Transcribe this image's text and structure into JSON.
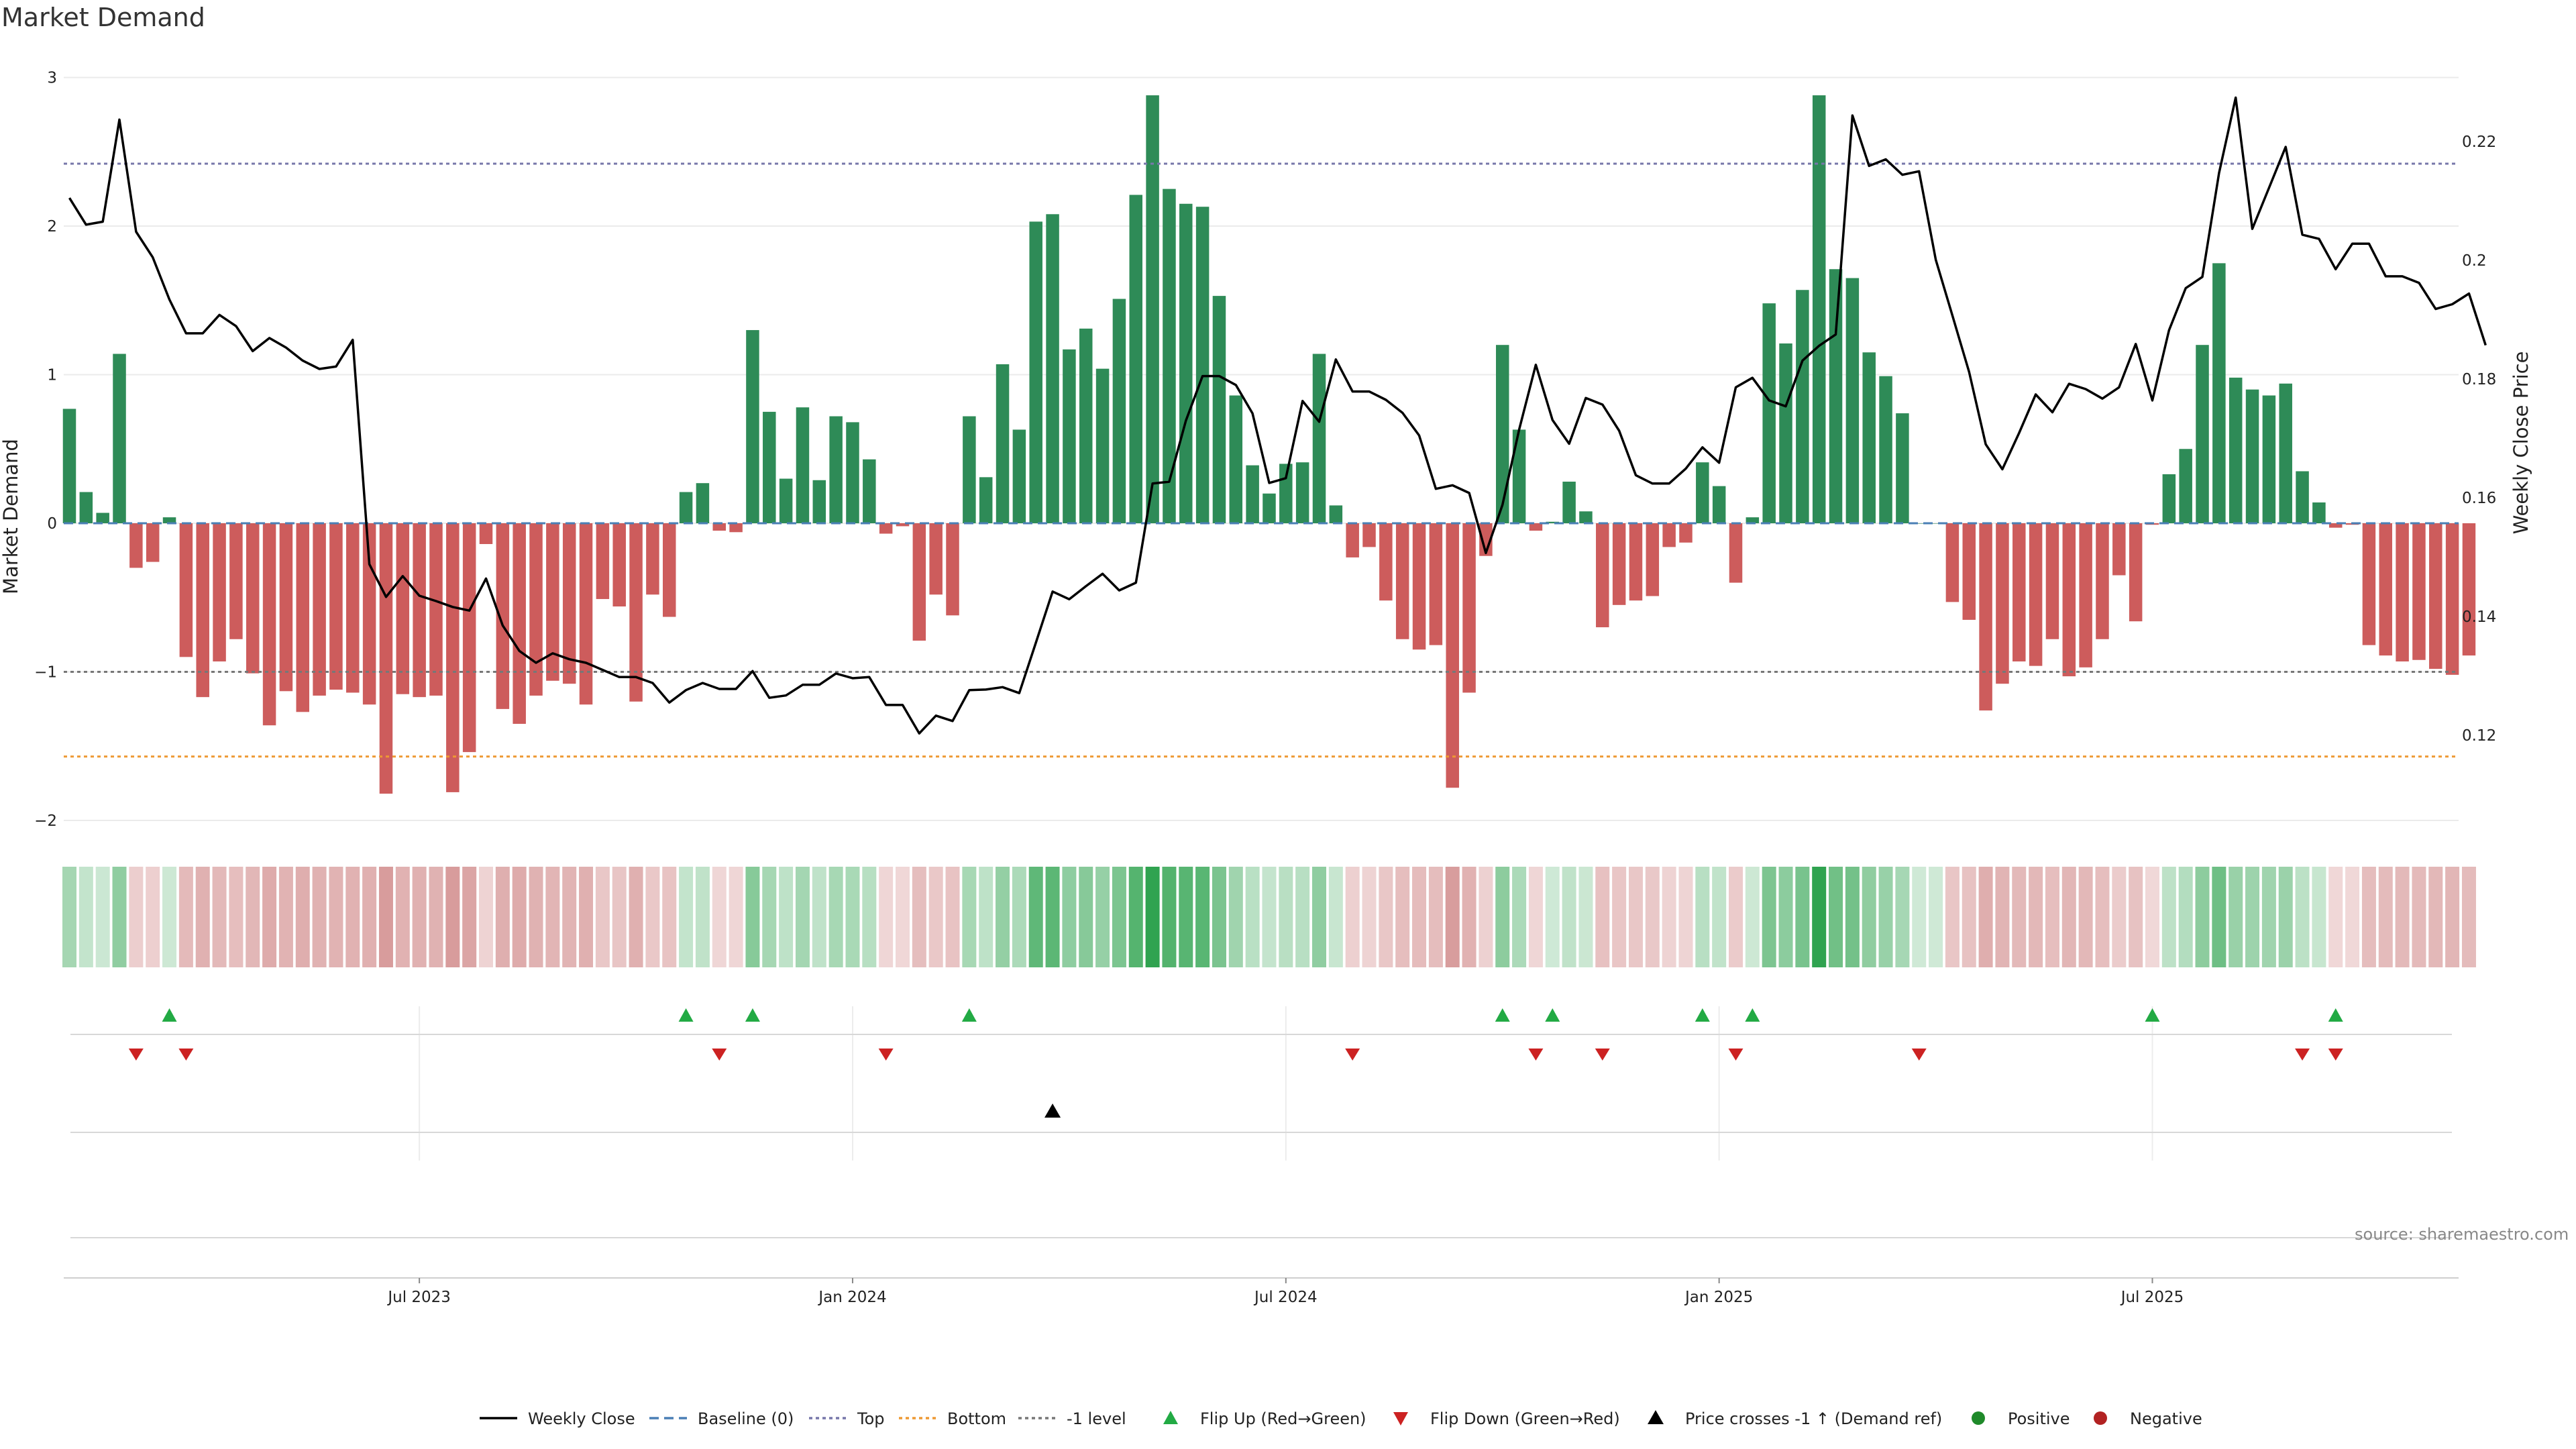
{
  "chart_data": {
    "type": "bar",
    "title": "Market Demand",
    "source_note": "source: sharemaestro.com",
    "ylabel": "Market Demand",
    "y2label": "Weekly Close Price",
    "ylim": [
      -2.25,
      3.05
    ],
    "y2lim": [
      0.1055,
      0.2308
    ],
    "yticks": [
      3,
      2,
      1,
      0,
      -1,
      -2
    ],
    "y2ticks": [
      "0.22",
      "0.2",
      "0.18",
      "0.16",
      "0.14",
      "0.12"
    ],
    "y2tick_values": [
      0.22,
      0.2,
      0.18,
      0.16,
      0.14,
      0.12
    ],
    "xticks": [
      "Jul 2023",
      "Jan 2024",
      "Jul 2024",
      "Jan 2025",
      "Jul 2025"
    ],
    "xtick_weeks": [
      21,
      47,
      73,
      99,
      125
    ],
    "reference_lines": {
      "top": 2.42,
      "minus_one": -1.0,
      "bottom": -1.57
    },
    "colors": {
      "positive": "#2e8b57",
      "negative": "#cd5c5c",
      "price": "#000000",
      "top": "#7777aa",
      "bottom": "#ee9933",
      "minus_one": "#777777",
      "flip_up": "#22aa44",
      "flip_down": "#cc2222"
    },
    "demand": [
      0.77,
      0.21,
      0.07,
      1.14,
      -0.3,
      -0.26,
      0.04,
      -0.9,
      -1.17,
      -0.93,
      -0.78,
      -1.01,
      -1.36,
      -1.13,
      -1.27,
      -1.16,
      -1.12,
      -1.14,
      -1.22,
      -1.82,
      -1.15,
      -1.17,
      -1.16,
      -1.81,
      -1.54,
      -0.14,
      -1.25,
      -1.35,
      -1.16,
      -1.06,
      -1.08,
      -1.22,
      -0.51,
      -0.56,
      -1.2,
      -0.48,
      -0.63,
      0.21,
      0.27,
      -0.05,
      -0.06,
      1.3,
      0.75,
      0.3,
      0.78,
      0.29,
      0.72,
      0.68,
      0.43,
      -0.07,
      -0.02,
      -0.79,
      -0.48,
      -0.62,
      0.72,
      0.31,
      1.07,
      0.63,
      2.03,
      2.08,
      1.17,
      1.31,
      1.04,
      1.51,
      2.21,
      2.88,
      2.25,
      2.15,
      2.13,
      1.53,
      0.86,
      0.39,
      0.2,
      0.4,
      0.41,
      1.14,
      0.12,
      -0.23,
      -0.16,
      -0.52,
      -0.78,
      -0.85,
      -0.82,
      -1.78,
      -1.14,
      -0.22,
      1.2,
      0.63,
      -0.05,
      0.01,
      0.28,
      0.08,
      -0.7,
      -0.55,
      -0.52,
      -0.49,
      -0.16,
      -0.13,
      0.41,
      0.25,
      -0.4,
      0.04,
      1.48,
      1.21,
      1.57,
      2.88,
      1.71,
      1.65,
      1.15,
      0.99,
      0.74,
      0.0,
      0.0,
      -0.53,
      -0.65,
      -1.26,
      -1.08,
      -0.93,
      -0.96,
      -0.78,
      -1.03,
      -0.97,
      -0.78,
      -0.35,
      -0.66,
      -0.01,
      0.33,
      0.5,
      1.2,
      1.75,
      0.98,
      0.9,
      0.86,
      0.94,
      0.35,
      0.14,
      -0.03,
      -0.01,
      -0.82,
      -0.89,
      -0.93,
      -0.92,
      -0.98,
      -1.02,
      -0.89
    ],
    "close": [
      0.2105,
      0.206,
      0.2065,
      0.2237,
      0.2048,
      0.2005,
      0.1934,
      0.1877,
      0.1877,
      0.1908,
      0.1889,
      0.1847,
      0.1869,
      0.1853,
      0.1831,
      0.1817,
      0.1821,
      0.1866,
      0.1488,
      0.1433,
      0.1468,
      0.1435,
      0.1426,
      0.1416,
      0.141,
      0.1464,
      0.1385,
      0.1342,
      0.1322,
      0.1338,
      0.1328,
      0.1322,
      0.131,
      0.1298,
      0.1298,
      0.1288,
      0.1255,
      0.1276,
      0.1288,
      0.1278,
      0.1278,
      0.1308,
      0.1263,
      0.1267,
      0.1285,
      0.1285,
      0.1304,
      0.1296,
      0.1298,
      0.1251,
      0.1251,
      0.1203,
      0.1233,
      0.1224,
      0.1276,
      0.1277,
      0.1281,
      0.1271,
      0.1356,
      0.1442,
      0.1429,
      0.1451,
      0.1472,
      0.1444,
      0.1457,
      0.1624,
      0.1627,
      0.173,
      0.1805,
      0.1805,
      0.179,
      0.1742,
      0.1625,
      0.1633,
      0.1763,
      0.1728,
      0.1833,
      0.1779,
      0.1779,
      0.1765,
      0.1743,
      0.1705,
      0.1615,
      0.1621,
      0.1608,
      0.1507,
      0.1588,
      0.1715,
      0.1824,
      0.1731,
      0.1691,
      0.1768,
      0.1757,
      0.1713,
      0.1638,
      0.1624,
      0.1624,
      0.1649,
      0.1685,
      0.1659,
      0.1786,
      0.1802,
      0.1764,
      0.1754,
      0.1831,
      0.1856,
      0.1875,
      0.2244,
      0.2159,
      0.217,
      0.2144,
      0.215,
      0.2001,
      0.1907,
      0.1812,
      0.169,
      0.1648,
      0.1709,
      0.1774,
      0.1744,
      0.1792,
      0.1783,
      0.1767,
      0.1786,
      0.1859,
      0.1764,
      0.1882,
      0.1953,
      0.1972,
      0.2147,
      0.2274,
      0.2053,
      0.2122,
      0.2191,
      0.2043,
      0.2036,
      0.1985,
      0.2028,
      0.2028,
      0.1973,
      0.1973,
      0.1962,
      0.1918,
      0.1926,
      0.1944,
      0.1857
    ],
    "flips_up": [
      6,
      37,
      41,
      54,
      86,
      89,
      98,
      101,
      125,
      136
    ],
    "flips_down": [
      4,
      7,
      39,
      49,
      77,
      88,
      92,
      100,
      111,
      134,
      136
    ],
    "price_cross_minus1_up": [
      59
    ],
    "legend": [
      "Weekly Close",
      "Baseline (0)",
      "Top",
      "Bottom",
      "-1 level",
      "Flip Up (Red→Green)",
      "Flip Down (Green→Red)",
      "Price crosses -1 ↑ (Demand ref)",
      "Positive",
      "Negative"
    ]
  }
}
